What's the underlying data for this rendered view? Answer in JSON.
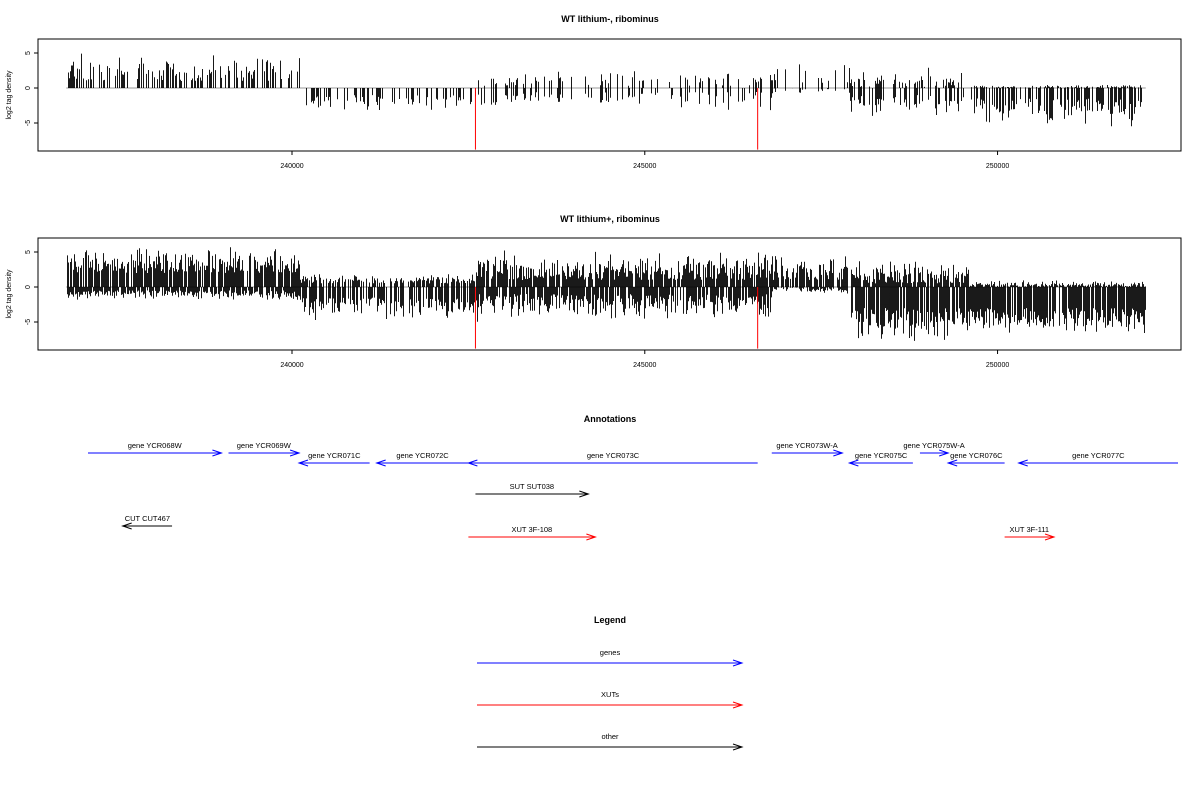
{
  "colors": {
    "gene": "#0000ff",
    "xut": "#ff0000",
    "other": "#000000",
    "marker": "#ff0000",
    "baseline": "#999999"
  },
  "chart_data": [
    {
      "type": "bar",
      "title": "WT lithium-, ribominus",
      "ylabel": "log2 tag density",
      "xlim": [
        236400,
        252600
      ],
      "ylim": [
        -9,
        7
      ],
      "xticks": [
        240000,
        245000,
        250000
      ],
      "xtick_labels": [
        "240000",
        "245000",
        "250000"
      ],
      "yticks": [
        5,
        0,
        -5
      ],
      "ytick_labels": [
        "5",
        "0",
        "-5"
      ],
      "grid": false,
      "markers": [
        {
          "x": 242600,
          "y": -8.8
        },
        {
          "x": 246600,
          "y": -8.8
        }
      ],
      "regions": [
        {
          "x": [
            236800,
            240100
          ],
          "pos": [
            1,
            5
          ],
          "neg": [
            0,
            0
          ],
          "density": 0.5
        },
        {
          "x": [
            240100,
            242600
          ],
          "pos": [
            0,
            0
          ],
          "neg": [
            -1,
            -3.5
          ],
          "density": 0.35
        },
        {
          "x": [
            242600,
            246800
          ],
          "pos": [
            0.3,
            3
          ],
          "neg": [
            -0.5,
            -3.5
          ],
          "density": 0.3
        },
        {
          "x": [
            246800,
            247900
          ],
          "pos": [
            0.5,
            4
          ],
          "neg": [
            0,
            -1
          ],
          "density": 0.25
        },
        {
          "x": [
            247900,
            249600
          ],
          "pos": [
            0,
            3
          ],
          "neg": [
            -1,
            -4.5
          ],
          "density": 0.5
        },
        {
          "x": [
            249600,
            252100
          ],
          "pos": [
            0,
            0.5
          ],
          "neg": [
            -1.5,
            -6
          ],
          "density": 0.65
        }
      ]
    },
    {
      "type": "bar",
      "title": "WT lithium+, ribominus",
      "ylabel": "log2 tag density",
      "xlim": [
        236400,
        252600
      ],
      "ylim": [
        -9,
        7
      ],
      "xticks": [
        240000,
        245000,
        250000
      ],
      "xtick_labels": [
        "240000",
        "245000",
        "250000"
      ],
      "yticks": [
        5,
        0,
        -5
      ],
      "ytick_labels": [
        "5",
        "0",
        "-5"
      ],
      "grid": false,
      "markers": [
        {
          "x": 242600,
          "y": -8.8
        },
        {
          "x": 246600,
          "y": -8.8
        }
      ],
      "regions": [
        {
          "x": [
            236800,
            240100
          ],
          "pos": [
            2,
            6
          ],
          "neg": [
            -0.5,
            -2
          ],
          "density": 1
        },
        {
          "x": [
            240100,
            242600
          ],
          "pos": [
            0.5,
            2
          ],
          "neg": [
            -1.5,
            -5
          ],
          "density": 0.8
        },
        {
          "x": [
            242600,
            246800
          ],
          "pos": [
            1,
            5.5
          ],
          "neg": [
            -1,
            -5
          ],
          "density": 1
        },
        {
          "x": [
            246800,
            247900
          ],
          "pos": [
            1,
            5
          ],
          "neg": [
            0,
            -1
          ],
          "density": 0.8
        },
        {
          "x": [
            247900,
            249600
          ],
          "pos": [
            0.5,
            4
          ],
          "neg": [
            -3,
            -8
          ],
          "density": 1
        },
        {
          "x": [
            249600,
            252100
          ],
          "pos": [
            0,
            1
          ],
          "neg": [
            -3,
            -7
          ],
          "density": 1
        }
      ]
    }
  ],
  "annotations": {
    "title": "Annotations",
    "features": [
      {
        "label": "gene YCR068W",
        "type": "gene",
        "start": 236800,
        "end": 239000,
        "strand": "+",
        "row": 0
      },
      {
        "label": "gene YCR069W",
        "type": "gene",
        "start": 239100,
        "end": 240100,
        "strand": "+",
        "row": 0
      },
      {
        "label": "gene YCR071C",
        "type": "gene",
        "start": 240100,
        "end": 241100,
        "strand": "-",
        "row": 1
      },
      {
        "label": "gene YCR072C",
        "type": "gene",
        "start": 241200,
        "end": 242500,
        "strand": "-",
        "row": 1
      },
      {
        "label": "gene YCR073C",
        "type": "gene",
        "start": 242500,
        "end": 246600,
        "strand": "-",
        "row": 1
      },
      {
        "label": "gene YCR073W-A",
        "type": "gene",
        "start": 246800,
        "end": 247800,
        "strand": "+",
        "row": 0
      },
      {
        "label": "gene YCR075C",
        "type": "gene",
        "start": 247900,
        "end": 248800,
        "strand": "-",
        "row": 1
      },
      {
        "label": "gene YCR075W-A",
        "type": "gene",
        "start": 248900,
        "end": 249300,
        "strand": "+",
        "row": 0
      },
      {
        "label": "gene YCR076C",
        "type": "gene",
        "start": 249300,
        "end": 250100,
        "strand": "-",
        "row": 1
      },
      {
        "label": "gene YCR077C",
        "type": "gene",
        "start": 250300,
        "end": 252600,
        "strand": "-",
        "row": 1
      },
      {
        "label": "SUT SUT038",
        "type": "other",
        "start": 242600,
        "end": 244200,
        "strand": "+",
        "row": 2
      },
      {
        "label": "CUT CUT467",
        "type": "other",
        "start": 237600,
        "end": 238300,
        "strand": "-",
        "row": 3
      },
      {
        "label": "XUT 3F-108",
        "type": "xut",
        "start": 242500,
        "end": 244300,
        "strand": "+",
        "row": 4
      },
      {
        "label": "XUT 3F-111",
        "type": "xut",
        "start": 250100,
        "end": 250800,
        "strand": "+",
        "row": 4
      }
    ]
  },
  "legend": {
    "title": "Legend",
    "items": [
      {
        "label": "genes",
        "type": "gene"
      },
      {
        "label": "XUTs",
        "type": "xut"
      },
      {
        "label": "other",
        "type": "other"
      }
    ]
  }
}
